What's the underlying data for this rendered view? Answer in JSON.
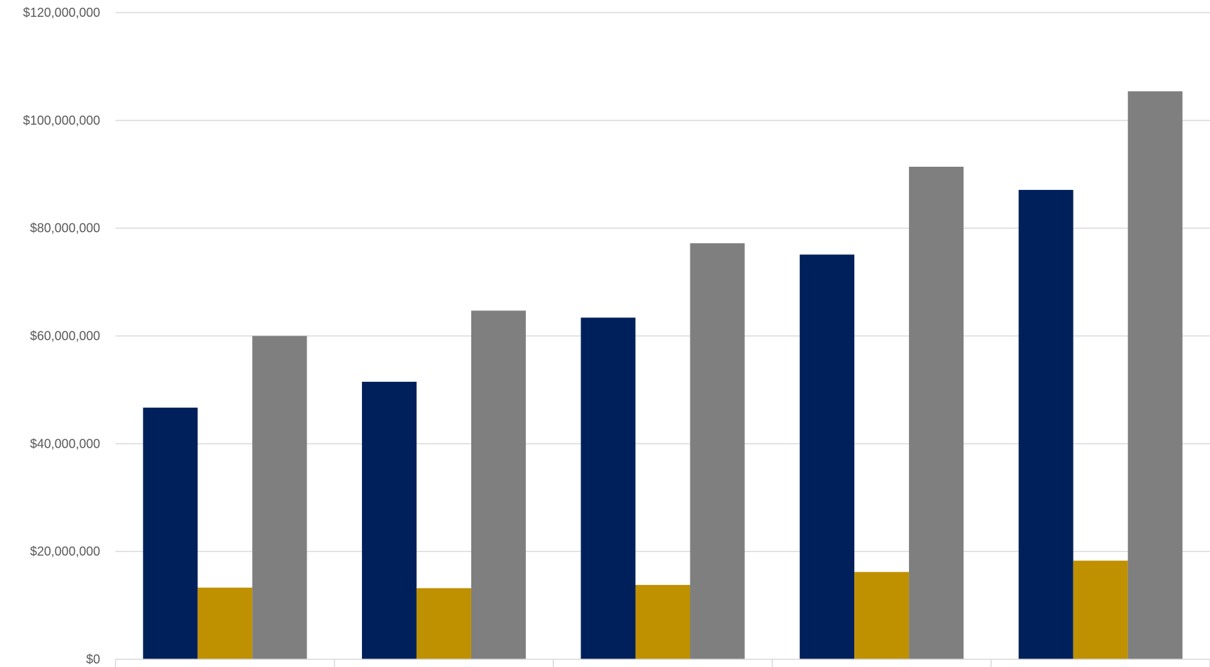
{
  "chart_data": {
    "type": "bar",
    "title": "",
    "xlabel": "",
    "ylabel": "",
    "ylim": [
      0,
      120000000
    ],
    "y_ticks": [
      0,
      20000000,
      40000000,
      60000000,
      80000000,
      100000000,
      120000000
    ],
    "y_tick_labels": [
      "$0",
      "$20,000,000",
      "$40,000,000",
      "$60,000,000",
      "$80,000,000",
      "$100,000,000",
      "$120,000,000"
    ],
    "grid": true,
    "categories": [
      "",
      "",
      "",
      "",
      ""
    ],
    "series": [
      {
        "color": "#00205b",
        "values": [
          46700000,
          51500000,
          63400000,
          75100000,
          87100000
        ]
      },
      {
        "color": "#bf9000",
        "values": [
          13300000,
          13200000,
          13800000,
          16200000,
          18300000
        ]
      },
      {
        "color": "#7f7f7f",
        "values": [
          60000000,
          64700000,
          77200000,
          91400000,
          105400000
        ]
      }
    ]
  }
}
